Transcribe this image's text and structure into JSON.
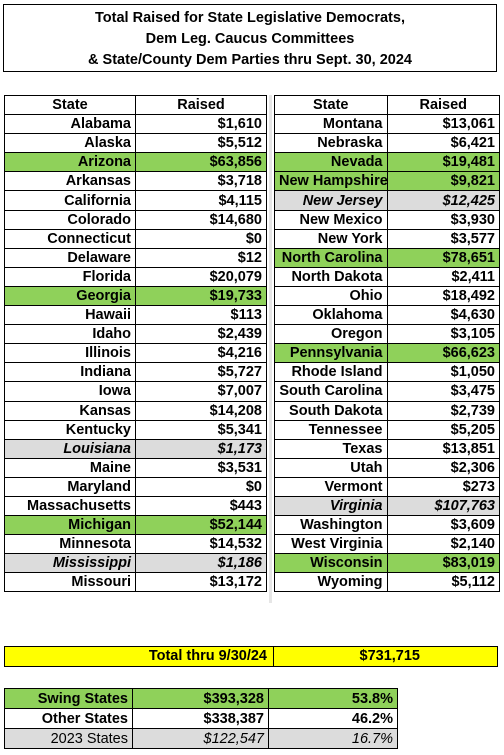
{
  "title": {
    "line1": "Total Raised for State Legislative Democrats,",
    "line2": "Dem Leg. Caucus Committees",
    "line3": "& State/County Dem Parties thru Sept. 30, 2024"
  },
  "headers": {
    "state": "State",
    "raised": "Raised"
  },
  "colors": {
    "swing": "#8fd15a",
    "year2023": "#dcdcdc",
    "total": "#ffff00"
  },
  "left_rows": [
    {
      "state": "Alabama",
      "raised": "$1,610",
      "type": "normal"
    },
    {
      "state": "Alaska",
      "raised": "$5,512",
      "type": "normal"
    },
    {
      "state": "Arizona",
      "raised": "$63,856",
      "type": "swing"
    },
    {
      "state": "Arkansas",
      "raised": "$3,718",
      "type": "normal"
    },
    {
      "state": "California",
      "raised": "$4,115",
      "type": "normal"
    },
    {
      "state": "Colorado",
      "raised": "$14,680",
      "type": "normal"
    },
    {
      "state": "Connecticut",
      "raised": "$0",
      "type": "normal"
    },
    {
      "state": "Delaware",
      "raised": "$12",
      "type": "normal"
    },
    {
      "state": "Florida",
      "raised": "$20,079",
      "type": "normal"
    },
    {
      "state": "Georgia",
      "raised": "$19,733",
      "type": "swing"
    },
    {
      "state": "Hawaii",
      "raised": "$113",
      "type": "normal"
    },
    {
      "state": "Idaho",
      "raised": "$2,439",
      "type": "normal"
    },
    {
      "state": "Illinois",
      "raised": "$4,216",
      "type": "normal"
    },
    {
      "state": "Indiana",
      "raised": "$5,727",
      "type": "normal"
    },
    {
      "state": "Iowa",
      "raised": "$7,007",
      "type": "normal"
    },
    {
      "state": "Kansas",
      "raised": "$14,208",
      "type": "normal"
    },
    {
      "state": "Kentucky",
      "raised": "$5,341",
      "type": "normal"
    },
    {
      "state": "Louisiana",
      "raised": "$1,173",
      "type": "y2023"
    },
    {
      "state": "Maine",
      "raised": "$3,531",
      "type": "normal"
    },
    {
      "state": "Maryland",
      "raised": "$0",
      "type": "normal"
    },
    {
      "state": "Massachusetts",
      "raised": "$443",
      "type": "normal"
    },
    {
      "state": "Michigan",
      "raised": "$52,144",
      "type": "swing"
    },
    {
      "state": "Minnesota",
      "raised": "$14,532",
      "type": "normal"
    },
    {
      "state": "Mississippi",
      "raised": "$1,186",
      "type": "y2023"
    },
    {
      "state": "Missouri",
      "raised": "$13,172",
      "type": "normal"
    }
  ],
  "right_rows": [
    {
      "state": "Montana",
      "raised": "$13,061",
      "type": "normal"
    },
    {
      "state": "Nebraska",
      "raised": "$6,421",
      "type": "normal"
    },
    {
      "state": "Nevada",
      "raised": "$19,481",
      "type": "swing"
    },
    {
      "state": "New Hampshire",
      "raised": "$9,821",
      "type": "swing"
    },
    {
      "state": "New Jersey",
      "raised": "$12,425",
      "type": "y2023"
    },
    {
      "state": "New Mexico",
      "raised": "$3,930",
      "type": "normal"
    },
    {
      "state": "New York",
      "raised": "$3,577",
      "type": "normal"
    },
    {
      "state": "North Carolina",
      "raised": "$78,651",
      "type": "swing"
    },
    {
      "state": "North Dakota",
      "raised": "$2,411",
      "type": "normal"
    },
    {
      "state": "Ohio",
      "raised": "$18,492",
      "type": "normal"
    },
    {
      "state": "Oklahoma",
      "raised": "$4,630",
      "type": "normal"
    },
    {
      "state": "Oregon",
      "raised": "$3,105",
      "type": "normal"
    },
    {
      "state": "Pennsylvania",
      "raised": "$66,623",
      "type": "swing"
    },
    {
      "state": "Rhode Island",
      "raised": "$1,050",
      "type": "normal"
    },
    {
      "state": "South Carolina",
      "raised": "$3,475",
      "type": "normal"
    },
    {
      "state": "South Dakota",
      "raised": "$2,739",
      "type": "normal"
    },
    {
      "state": "Tennessee",
      "raised": "$5,205",
      "type": "normal"
    },
    {
      "state": "Texas",
      "raised": "$13,851",
      "type": "normal"
    },
    {
      "state": "Utah",
      "raised": "$2,306",
      "type": "normal"
    },
    {
      "state": "Vermont",
      "raised": "$273",
      "type": "normal"
    },
    {
      "state": "Virginia",
      "raised": "$107,763",
      "type": "y2023"
    },
    {
      "state": "Washington",
      "raised": "$3,609",
      "type": "normal"
    },
    {
      "state": "West Virginia",
      "raised": "$2,140",
      "type": "normal"
    },
    {
      "state": "Wisconsin",
      "raised": "$83,019",
      "type": "swing"
    },
    {
      "state": "Wyoming",
      "raised": "$5,112",
      "type": "normal"
    }
  ],
  "total": {
    "label": "Total thru 9/30/24",
    "value": "$731,715"
  },
  "summary": [
    {
      "label": "Swing States",
      "amount": "$393,328",
      "pct": "53.8%",
      "type": "s-swing"
    },
    {
      "label": "Other States",
      "amount": "$338,387",
      "pct": "46.2%",
      "type": "s-other"
    },
    {
      "label": "2023 States",
      "amount": "$122,547",
      "pct": "16.7%",
      "type": "s-2023"
    }
  ]
}
